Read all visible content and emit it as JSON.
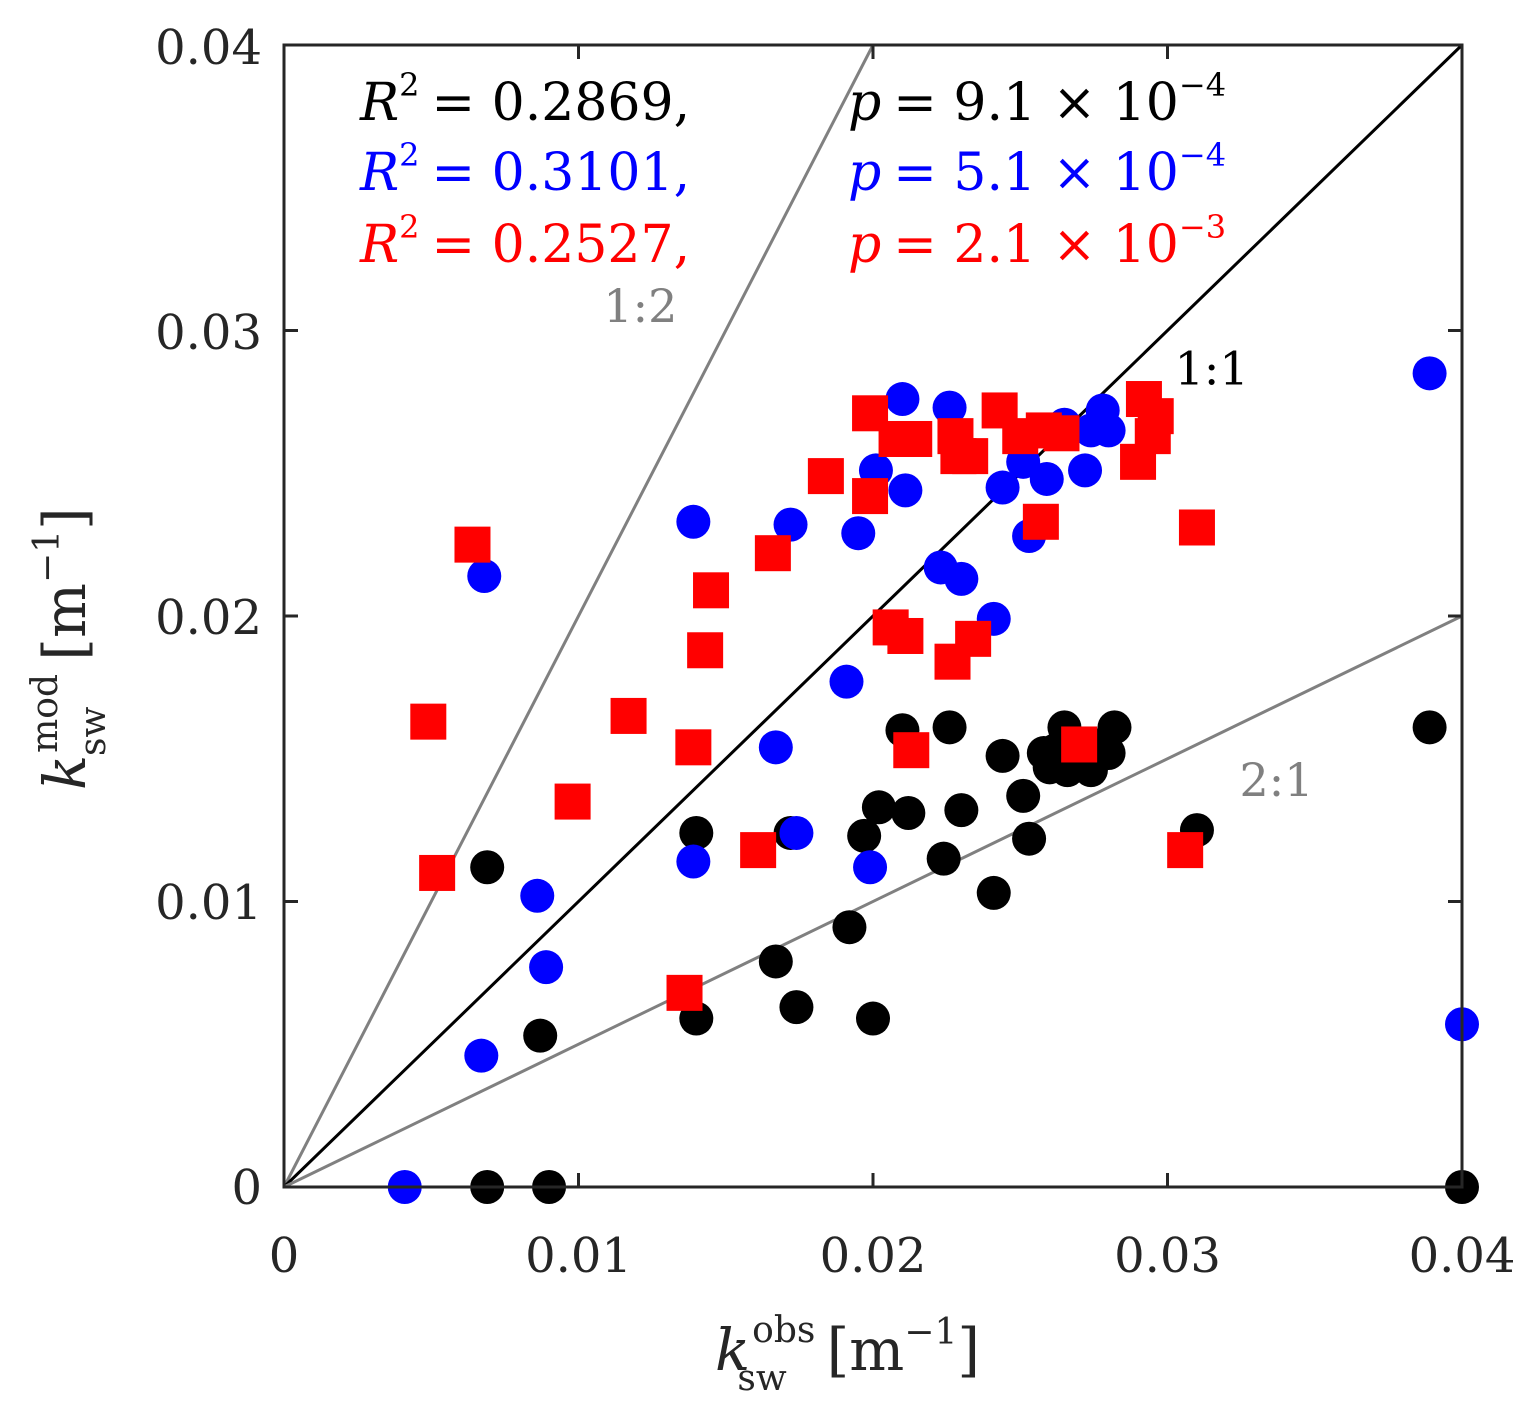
{
  "chart_data": {
    "type": "scatter",
    "title": "",
    "xlabel": {
      "base": "k",
      "sup": "obs",
      "sub": "sw",
      "unit": "[m",
      "unit_sup": "−1",
      "unit_close": "]"
    },
    "ylabel": {
      "base": "k",
      "sup": "mod",
      "sub": "sw",
      "unit": "[m",
      "unit_sup": "−1",
      "unit_close": "]"
    },
    "xlim": [
      0,
      0.04
    ],
    "ylim": [
      0,
      0.04
    ],
    "xticks": [
      0,
      0.01,
      0.02,
      0.03,
      0.04
    ],
    "yticks": [
      0,
      0.01,
      0.02,
      0.03,
      0.04
    ],
    "xtick_labels": [
      "0",
      "0.01",
      "0.02",
      "0.03",
      "0.04"
    ],
    "ytick_labels": [
      "0",
      "0.01",
      "0.02",
      "0.03",
      "0.04"
    ],
    "grid": false,
    "reference_lines": [
      {
        "label": "1:2",
        "slope": 2,
        "color": "#808080",
        "label_at": [
          0.0121,
          0.0303
        ]
      },
      {
        "label": "1:1",
        "slope": 1,
        "color": "#000000",
        "label_at": [
          0.0315,
          0.0281
        ]
      },
      {
        "label": "2:1",
        "slope": 0.5,
        "color": "#808080",
        "label_at": [
          0.0337,
          0.0137
        ]
      }
    ],
    "annotations": [
      {
        "r2_label": "R",
        "r2_sup": "2",
        "r2_value": "= 0.2869,",
        "p_label": "p",
        "p_value": "= 9.1 × 10",
        "p_exp": "−4",
        "color": "#000000"
      },
      {
        "r2_label": "R",
        "r2_sup": "2",
        "r2_value": "= 0.3101,",
        "p_label": "p",
        "p_value": "= 5.1 × 10",
        "p_exp": "−4",
        "color": "#0000ff"
      },
      {
        "r2_label": "R",
        "r2_sup": "2",
        "r2_value": "= 0.2527,",
        "p_label": "p",
        "p_value": "= 2.1 × 10",
        "p_exp": "−3",
        "color": "#ff0000"
      }
    ],
    "series": [
      {
        "name": "black",
        "marker": "circle",
        "color": "#000000",
        "points": [
          [
            0.0069,
            0
          ],
          [
            0.009,
            0
          ],
          [
            0.04,
            0
          ],
          [
            0.0069,
            0.0112
          ],
          [
            0.0087,
            0.0053
          ],
          [
            0.014,
            0.0059
          ],
          [
            0.014,
            0.0124
          ],
          [
            0.0167,
            0.0079
          ],
          [
            0.0172,
            0.0124
          ],
          [
            0.0174,
            0.0063
          ],
          [
            0.0192,
            0.0091
          ],
          [
            0.0197,
            0.0123
          ],
          [
            0.02,
            0.0059
          ],
          [
            0.0202,
            0.0133
          ],
          [
            0.021,
            0.016
          ],
          [
            0.0212,
            0.0131
          ],
          [
            0.0224,
            0.0115
          ],
          [
            0.0226,
            0.0161
          ],
          [
            0.023,
            0.0132
          ],
          [
            0.0241,
            0.0103
          ],
          [
            0.0244,
            0.0151
          ],
          [
            0.0251,
            0.0137
          ],
          [
            0.0253,
            0.0122
          ],
          [
            0.0258,
            0.0152
          ],
          [
            0.026,
            0.0147
          ],
          [
            0.0262,
            0.0153
          ],
          [
            0.0265,
            0.0161
          ],
          [
            0.0266,
            0.0146
          ],
          [
            0.0272,
            0.015
          ],
          [
            0.0274,
            0.0146
          ],
          [
            0.0278,
            0.0155
          ],
          [
            0.028,
            0.0152
          ],
          [
            0.0282,
            0.0161
          ],
          [
            0.031,
            0.0125
          ],
          [
            0.0389,
            0.0161
          ]
        ]
      },
      {
        "name": "blue",
        "marker": "circle",
        "color": "#0000ff",
        "points": [
          [
            0.0041,
            0
          ],
          [
            0.0068,
            0.0214
          ],
          [
            0.0067,
            0.0046
          ],
          [
            0.0086,
            0.0102
          ],
          [
            0.0089,
            0.0077
          ],
          [
            0.0139,
            0.0233
          ],
          [
            0.0139,
            0.0114
          ],
          [
            0.0167,
            0.0154
          ],
          [
            0.0172,
            0.0232
          ],
          [
            0.0174,
            0.0124
          ],
          [
            0.0191,
            0.0177
          ],
          [
            0.0195,
            0.0229
          ],
          [
            0.0199,
            0.0112
          ],
          [
            0.0201,
            0.0251
          ],
          [
            0.021,
            0.0276
          ],
          [
            0.0211,
            0.0244
          ],
          [
            0.0223,
            0.0217
          ],
          [
            0.0226,
            0.0273
          ],
          [
            0.023,
            0.0213
          ],
          [
            0.0241,
            0.0199
          ],
          [
            0.0244,
            0.0245
          ],
          [
            0.0251,
            0.0254
          ],
          [
            0.0253,
            0.0228
          ],
          [
            0.0259,
            0.0248
          ],
          [
            0.0265,
            0.0267
          ],
          [
            0.0272,
            0.0251
          ],
          [
            0.0274,
            0.0265
          ],
          [
            0.0278,
            0.0272
          ],
          [
            0.028,
            0.0265
          ],
          [
            0.0389,
            0.0285
          ],
          [
            0.04,
            0.0057
          ]
        ]
      },
      {
        "name": "red",
        "marker": "square",
        "color": "#ff0000",
        "points": [
          [
            0.0049,
            0.0163
          ],
          [
            0.0052,
            0.011
          ],
          [
            0.0064,
            0.0225
          ],
          [
            0.0098,
            0.0135
          ],
          [
            0.0117,
            0.0165
          ],
          [
            0.0136,
            0.0068
          ],
          [
            0.0139,
            0.0154
          ],
          [
            0.0143,
            0.0188
          ],
          [
            0.0145,
            0.0209
          ],
          [
            0.0161,
            0.0118
          ],
          [
            0.0166,
            0.0222
          ],
          [
            0.0184,
            0.0249
          ],
          [
            0.0199,
            0.0271
          ],
          [
            0.0199,
            0.0242
          ],
          [
            0.0206,
            0.0196
          ],
          [
            0.0208,
            0.0262
          ],
          [
            0.0211,
            0.0193
          ],
          [
            0.0213,
            0.0153
          ],
          [
            0.0214,
            0.0262
          ],
          [
            0.0227,
            0.0184
          ],
          [
            0.0228,
            0.0263
          ],
          [
            0.0229,
            0.0256
          ],
          [
            0.0233,
            0.0256
          ],
          [
            0.0234,
            0.0192
          ],
          [
            0.0243,
            0.0272
          ],
          [
            0.025,
            0.0263
          ],
          [
            0.0257,
            0.0233
          ],
          [
            0.0258,
            0.0265
          ],
          [
            0.0264,
            0.0264
          ],
          [
            0.027,
            0.0155
          ],
          [
            0.029,
            0.0254
          ],
          [
            0.0292,
            0.0276
          ],
          [
            0.0295,
            0.0263
          ],
          [
            0.0296,
            0.027
          ],
          [
            0.0306,
            0.0118
          ],
          [
            0.031,
            0.0231
          ]
        ]
      }
    ]
  }
}
